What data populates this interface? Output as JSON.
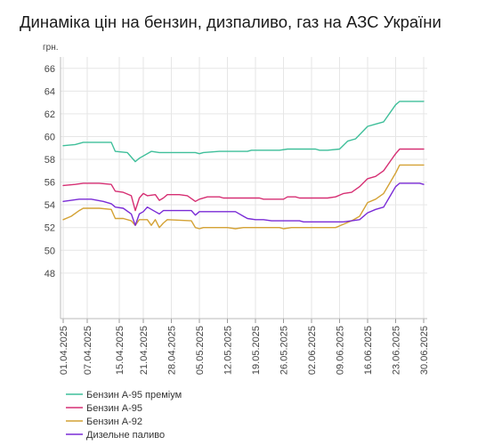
{
  "chart_data": {
    "type": "line",
    "title": "Динаміка цін на бензин, дизпаливо, газ на АЗС України",
    "ylabel": "грн.",
    "xlabel": "",
    "ylim": [
      44,
      67
    ],
    "yticks": [
      48,
      50,
      52,
      54,
      56,
      58,
      60,
      62,
      64,
      66
    ],
    "grid": true,
    "legend_position": "bottom-left",
    "x_dates": [
      "01.04.2025",
      "07.04.2025",
      "15.04.2025",
      "21.04.2025",
      "28.04.2025",
      "05.05.2025",
      "12.05.2025",
      "19.05.2025",
      "26.05.2025",
      "02.06.2025",
      "09.06.2025",
      "16.06.2025",
      "23.06.2025",
      "30.06.2025"
    ],
    "x_tick_labels": [
      "01.04.2025",
      "07.04.2025",
      "15.04.2025",
      "21.04.2025",
      "28.04.2025",
      "05.05.2025",
      "12.05.2025",
      "19.05.2025",
      "26.05.2025",
      "02.06.2025",
      "09.06.2025",
      "16.06.2025",
      "23.06.2025",
      "30.06.2025"
    ],
    "series": [
      {
        "name": "Бензин А-95 преміум",
        "color": "#3fbf9a",
        "points": [
          [
            "01.04.2025",
            59.2
          ],
          [
            "04.04.2025",
            59.3
          ],
          [
            "06.04.2025",
            59.5
          ],
          [
            "10.04.2025",
            59.5
          ],
          [
            "13.04.2025",
            59.5
          ],
          [
            "14.04.2025",
            58.7
          ],
          [
            "17.04.2025",
            58.6
          ],
          [
            "19.04.2025",
            57.8
          ],
          [
            "20.04.2025",
            58.1
          ],
          [
            "23.04.2025",
            58.7
          ],
          [
            "25.04.2025",
            58.6
          ],
          [
            "04.05.2025",
            58.6
          ],
          [
            "05.05.2025",
            58.5
          ],
          [
            "06.05.2025",
            58.6
          ],
          [
            "10.05.2025",
            58.7
          ],
          [
            "13.05.2025",
            58.7
          ],
          [
            "17.05.2025",
            58.7
          ],
          [
            "18.05.2025",
            58.8
          ],
          [
            "24.05.2025",
            58.8
          ],
          [
            "25.05.2025",
            58.8
          ],
          [
            "27.05.2025",
            58.9
          ],
          [
            "03.06.2025",
            58.9
          ],
          [
            "04.06.2025",
            58.8
          ],
          [
            "06.06.2025",
            58.8
          ],
          [
            "09.06.2025",
            58.9
          ],
          [
            "11.06.2025",
            59.6
          ],
          [
            "13.06.2025",
            59.8
          ],
          [
            "16.06.2025",
            60.9
          ],
          [
            "18.06.2025",
            61.1
          ],
          [
            "20.06.2025",
            61.3
          ],
          [
            "23.06.2025",
            62.8
          ],
          [
            "24.06.2025",
            63.1
          ],
          [
            "30.06.2025",
            63.1
          ]
        ]
      },
      {
        "name": "Бензин А-95",
        "color": "#d62f73",
        "points": [
          [
            "01.04.2025",
            55.7
          ],
          [
            "04.04.2025",
            55.8
          ],
          [
            "06.04.2025",
            55.9
          ],
          [
            "10.04.2025",
            55.9
          ],
          [
            "13.04.2025",
            55.8
          ],
          [
            "14.04.2025",
            55.2
          ],
          [
            "16.04.2025",
            55.1
          ],
          [
            "18.04.2025",
            54.8
          ],
          [
            "19.04.2025",
            53.5
          ],
          [
            "20.04.2025",
            54.6
          ],
          [
            "21.04.2025",
            55.0
          ],
          [
            "22.04.2025",
            54.8
          ],
          [
            "24.04.2025",
            54.9
          ],
          [
            "25.04.2025",
            54.4
          ],
          [
            "26.04.2025",
            54.6
          ],
          [
            "27.04.2025",
            54.9
          ],
          [
            "30.04.2025",
            54.9
          ],
          [
            "02.05.2025",
            54.8
          ],
          [
            "04.05.2025",
            54.3
          ],
          [
            "05.05.2025",
            54.5
          ],
          [
            "07.05.2025",
            54.7
          ],
          [
            "10.05.2025",
            54.7
          ],
          [
            "11.05.2025",
            54.6
          ],
          [
            "20.05.2025",
            54.6
          ],
          [
            "21.05.2025",
            54.5
          ],
          [
            "26.05.2025",
            54.5
          ],
          [
            "27.05.2025",
            54.7
          ],
          [
            "29.05.2025",
            54.7
          ],
          [
            "30.05.2025",
            54.6
          ],
          [
            "06.06.2025",
            54.6
          ],
          [
            "08.06.2025",
            54.7
          ],
          [
            "10.06.2025",
            55.0
          ],
          [
            "12.06.2025",
            55.1
          ],
          [
            "14.06.2025",
            55.6
          ],
          [
            "16.06.2025",
            56.3
          ],
          [
            "18.06.2025",
            56.5
          ],
          [
            "20.06.2025",
            57.0
          ],
          [
            "22.06.2025",
            58.0
          ],
          [
            "23.06.2025",
            58.5
          ],
          [
            "24.06.2025",
            58.9
          ],
          [
            "30.06.2025",
            58.9
          ]
        ]
      },
      {
        "name": "Бензин А-92",
        "color": "#d4a235",
        "points": [
          [
            "01.04.2025",
            52.7
          ],
          [
            "03.04.2025",
            53.0
          ],
          [
            "05.04.2025",
            53.5
          ],
          [
            "06.04.2025",
            53.7
          ],
          [
            "10.04.2025",
            53.7
          ],
          [
            "13.04.2025",
            53.6
          ],
          [
            "14.04.2025",
            52.8
          ],
          [
            "16.04.2025",
            52.8
          ],
          [
            "18.04.2025",
            52.6
          ],
          [
            "19.04.2025",
            52.2
          ],
          [
            "20.04.2025",
            52.7
          ],
          [
            "22.04.2025",
            52.7
          ],
          [
            "23.04.2025",
            52.2
          ],
          [
            "24.04.2025",
            52.7
          ],
          [
            "25.04.2025",
            52.0
          ],
          [
            "26.04.2025",
            52.4
          ],
          [
            "27.04.2025",
            52.7
          ],
          [
            "03.05.2025",
            52.6
          ],
          [
            "04.05.2025",
            52.0
          ],
          [
            "05.05.2025",
            51.9
          ],
          [
            "06.05.2025",
            52.0
          ],
          [
            "12.05.2025",
            52.0
          ],
          [
            "14.05.2025",
            51.9
          ],
          [
            "16.05.2025",
            52.0
          ],
          [
            "25.05.2025",
            52.0
          ],
          [
            "26.05.2025",
            51.9
          ],
          [
            "28.05.2025",
            52.0
          ],
          [
            "06.06.2025",
            52.0
          ],
          [
            "08.06.2025",
            52.0
          ],
          [
            "10.06.2025",
            52.3
          ],
          [
            "12.06.2025",
            52.6
          ],
          [
            "14.06.2025",
            53.0
          ],
          [
            "16.06.2025",
            54.2
          ],
          [
            "18.06.2025",
            54.5
          ],
          [
            "20.06.2025",
            55.0
          ],
          [
            "22.06.2025",
            56.2
          ],
          [
            "23.06.2025",
            56.8
          ],
          [
            "24.06.2025",
            57.5
          ],
          [
            "30.06.2025",
            57.5
          ]
        ]
      },
      {
        "name": "Дизельне паливо",
        "color": "#7a2bd6",
        "points": [
          [
            "01.04.2025",
            54.3
          ],
          [
            "03.04.2025",
            54.4
          ],
          [
            "05.04.2025",
            54.5
          ],
          [
            "08.04.2025",
            54.5
          ],
          [
            "11.04.2025",
            54.3
          ],
          [
            "13.04.2025",
            54.1
          ],
          [
            "14.04.2025",
            53.8
          ],
          [
            "16.04.2025",
            53.7
          ],
          [
            "18.04.2025",
            53.2
          ],
          [
            "19.04.2025",
            52.2
          ],
          [
            "20.04.2025",
            53.2
          ],
          [
            "21.04.2025",
            53.4
          ],
          [
            "22.04.2025",
            53.8
          ],
          [
            "24.04.2025",
            53.4
          ],
          [
            "25.04.2025",
            53.2
          ],
          [
            "26.04.2025",
            53.5
          ],
          [
            "03.05.2025",
            53.5
          ],
          [
            "04.05.2025",
            53.1
          ],
          [
            "05.05.2025",
            53.4
          ],
          [
            "14.05.2025",
            53.4
          ],
          [
            "16.05.2025",
            53.0
          ],
          [
            "17.05.2025",
            52.8
          ],
          [
            "19.05.2025",
            52.7
          ],
          [
            "21.05.2025",
            52.7
          ],
          [
            "23.05.2025",
            52.6
          ],
          [
            "30.05.2025",
            52.6
          ],
          [
            "31.05.2025",
            52.5
          ],
          [
            "07.06.2025",
            52.5
          ],
          [
            "10.06.2025",
            52.5
          ],
          [
            "12.06.2025",
            52.6
          ],
          [
            "14.06.2025",
            52.7
          ],
          [
            "16.06.2025",
            53.3
          ],
          [
            "18.06.2025",
            53.6
          ],
          [
            "20.06.2025",
            53.8
          ],
          [
            "22.06.2025",
            55.0
          ],
          [
            "23.06.2025",
            55.6
          ],
          [
            "24.06.2025",
            55.9
          ],
          [
            "29.06.2025",
            55.9
          ],
          [
            "30.06.2025",
            55.8
          ]
        ]
      }
    ]
  }
}
